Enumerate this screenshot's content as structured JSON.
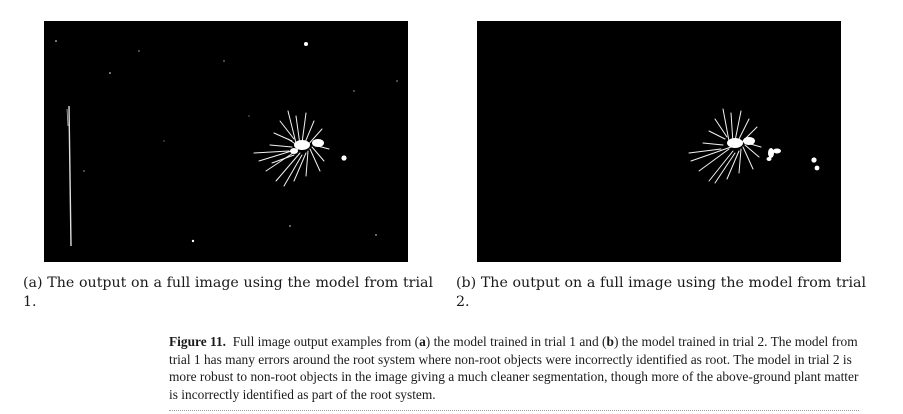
{
  "figure": {
    "subfigures": [
      {
        "id": "a",
        "caption": "(a) The output on a full image using the model from trial 1."
      },
      {
        "id": "b",
        "caption": "(b) The output on a full image using the model from trial 2."
      }
    ],
    "caption_label": "Figure 11.",
    "caption_parts": {
      "p1": "Full image output examples from (",
      "a": "a",
      "p2": ") the model trained in trial 1 and (",
      "b": "b",
      "p3": ") the model trained in trial 2. The model from trial 1 has many errors around the root system where non-root objects were incorrectly identified as root. The model in trial 2 is more robust to non-root objects in the image giving a much cleaner segmentation, though more of the above-ground plant matter is incorrectly identified as part of the root system."
    }
  }
}
